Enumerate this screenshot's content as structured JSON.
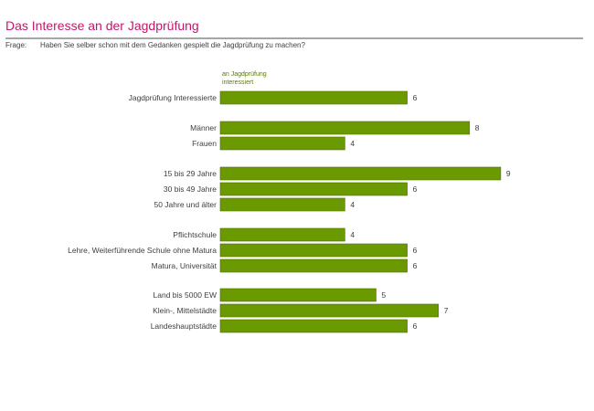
{
  "title": "Das Interesse an der Jagdprüfung",
  "question": {
    "label": "Frage:",
    "text": "Haben Sie selber schon mit dem Gedanken gespielt die Jagdprüfung zu machen?"
  },
  "colors": {
    "title": "#c0186a",
    "bar": "#6b9a00",
    "bar_edge": "#4f7300",
    "rule": "#a6a6a6"
  },
  "chart_data": {
    "type": "bar",
    "orientation": "horizontal",
    "series": [
      {
        "name": "an Jagdprüfung interessiert",
        "values": [
          6,
          8,
          4,
          9,
          6,
          4,
          4,
          6,
          6,
          5,
          7,
          6
        ]
      }
    ],
    "categories": [
      "Jagdprüfung Interessierte",
      "Männer",
      "Frauen",
      "15 bis 29 Jahre",
      "30 bis 49 Jahre",
      "50 Jahre und älter",
      "Pflichtschule",
      "Lehre, Weiterführende Schule ohne Matura",
      "Matura, Universität",
      "Land bis 5000 EW",
      "Klein-, Mittelstädte",
      "Landeshauptstädte"
    ],
    "xlim": [
      0,
      9
    ],
    "grid": false,
    "legend": "top"
  }
}
